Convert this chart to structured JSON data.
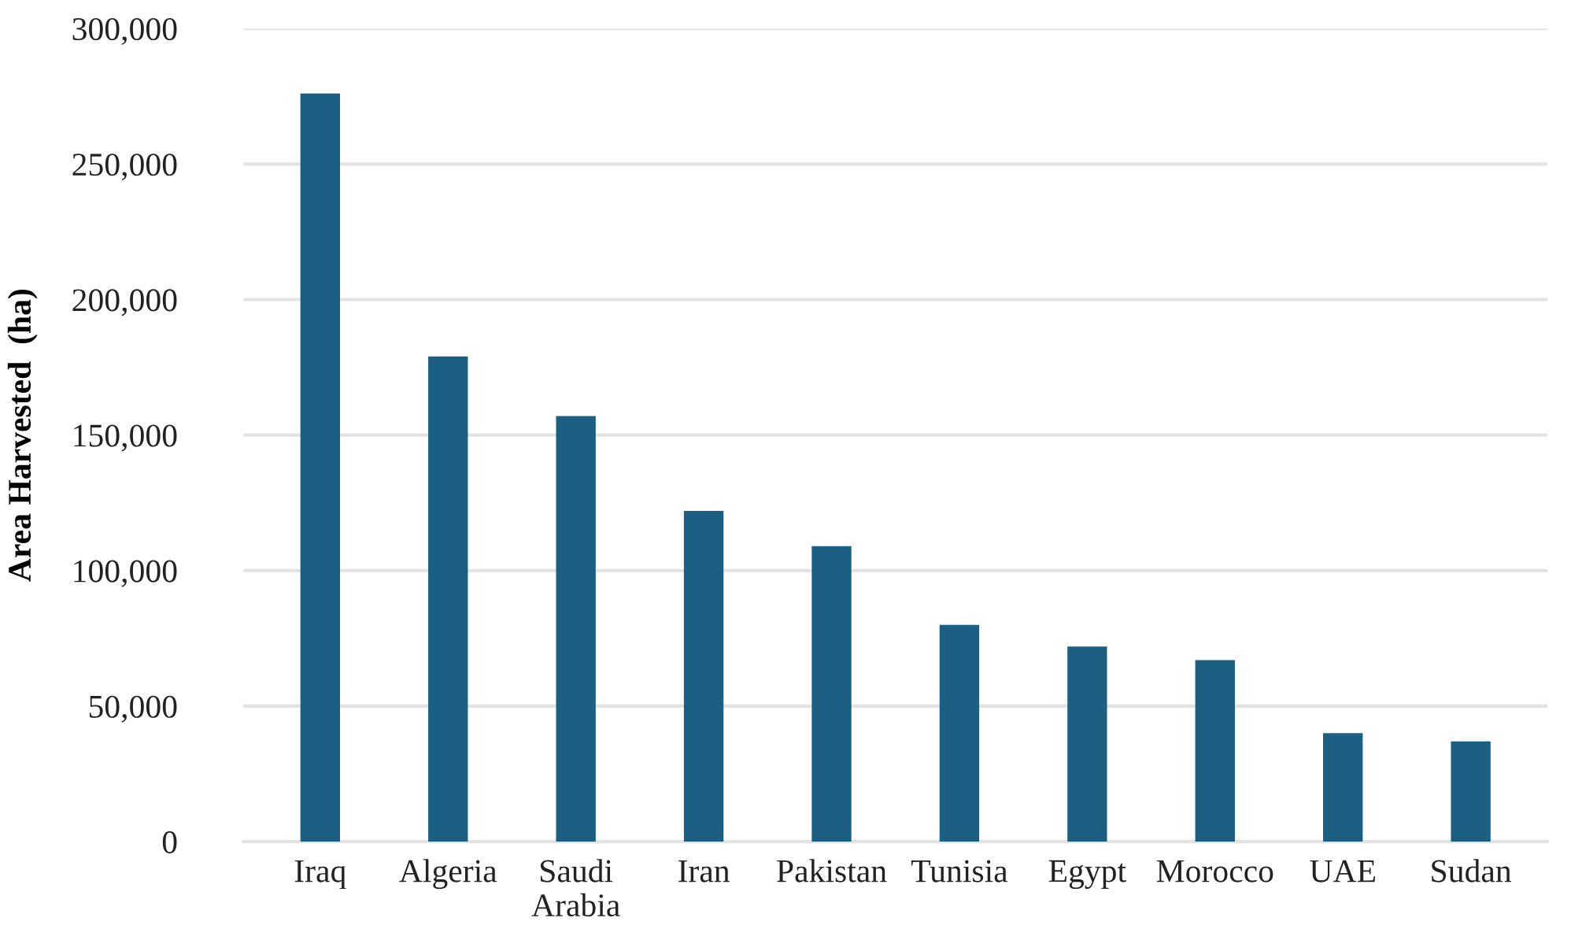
{
  "chart_data": {
    "type": "bar",
    "ylabel": "Area Harvested  (ha)",
    "categories": [
      "Iraq",
      "Algeria",
      "Saudi\nArabia",
      "Iran",
      "Pakistan",
      "Tunisia",
      "Egypt",
      "Morocco",
      "UAE",
      "Sudan"
    ],
    "values": [
      276000,
      179000,
      157000,
      122000,
      109000,
      80000,
      72000,
      67000,
      40000,
      37000
    ],
    "color": "#1b5f83",
    "ylim": [
      0,
      300000
    ],
    "yticks": [
      {
        "value": 0,
        "label": "0"
      },
      {
        "value": 50000,
        "label": "50,000"
      },
      {
        "value": 100000,
        "label": "100,000"
      },
      {
        "value": 150000,
        "label": "150,000"
      },
      {
        "value": 200000,
        "label": "200,000"
      },
      {
        "value": 250000,
        "label": "250,000"
      },
      {
        "value": 300000,
        "label": "300,000"
      }
    ],
    "grid": "y"
  }
}
